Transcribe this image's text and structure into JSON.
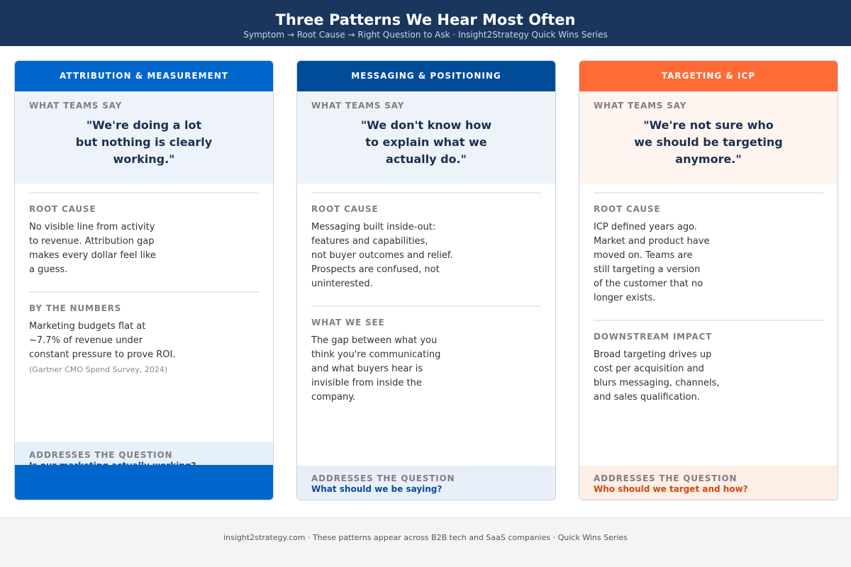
{
  "header": {
    "title": "Three Patterns We Hear Most Often",
    "subtitle": "Symptom → Root Cause → Right Question to Ask · Insight2Strategy Quick Wins Series"
  },
  "cards": [
    {
      "title": "ATTRIBUTION & MEASUREMENT",
      "quote_label": "WHAT TEAMS SAY",
      "quote": [
        "\"We're doing a lot",
        "but nothing is clearly",
        "working.\""
      ],
      "sections": [
        {
          "label": "ROOT CAUSE",
          "lines": [
            "No visible line from activity",
            "to revenue. Attribution gap",
            "makes every dollar feel like",
            "a guess."
          ]
        },
        {
          "label": "BY THE NUMBERS",
          "lines": [
            "Marketing budgets flat at",
            "~7.7% of revenue under",
            "constant pressure to prove ROI."
          ],
          "source": "(Gartner CMO Spend Survey, 2024)"
        }
      ],
      "question_label": "ADDRESSES THE QUESTION",
      "question": "Is our marketing actually working?"
    },
    {
      "title": "MESSAGING & POSITIONING",
      "quote_label": "WHAT TEAMS SAY",
      "quote": [
        "\"We don't know how",
        "to explain what we",
        "actually do.\""
      ],
      "sections": [
        {
          "label": "ROOT CAUSE",
          "lines": [
            "Messaging built inside-out:",
            "features and capabilities,",
            "not buyer outcomes and relief.",
            "Prospects are confused, not",
            "uninterested."
          ]
        },
        {
          "label": "WHAT WE SEE",
          "lines": [
            "The gap between what you",
            "think you're communicating",
            "and what buyers hear is",
            "invisible from inside the",
            "company."
          ]
        }
      ],
      "question_label": "ADDRESSES THE QUESTION",
      "question": "What should we be saying?"
    },
    {
      "title": "TARGETING & ICP",
      "quote_label": "WHAT TEAMS SAY",
      "quote": [
        "\"We're not sure who",
        "we should be targeting",
        "anymore.\""
      ],
      "sections": [
        {
          "label": "ROOT CAUSE",
          "lines": [
            "ICP defined years ago.",
            "Market and product have",
            "moved on. Teams are",
            "still targeting a version",
            "of the customer that no",
            "longer exists."
          ]
        },
        {
          "label": "DOWNSTREAM IMPACT",
          "lines": [
            "Broad targeting drives up",
            "cost per acquisition and",
            "blurs messaging, channels,",
            "and sales qualification."
          ]
        }
      ],
      "question_label": "ADDRESSES THE QUESTION",
      "question": "Who should we target and how?"
    }
  ],
  "footer": "insight2strategy.com · These patterns appear across B2B tech and SaaS companies · Quick Wins Series"
}
